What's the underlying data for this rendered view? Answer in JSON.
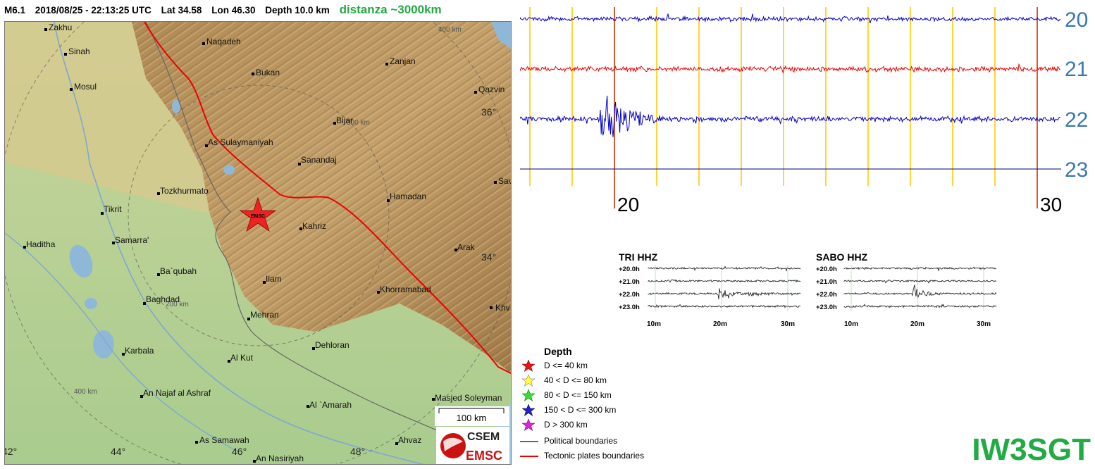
{
  "header": {
    "magnitude": "M6.1",
    "datetime": "2018/08/25 - 22:13:25 UTC",
    "lat": "Lat 34.58",
    "lon": "Lon 46.30",
    "depth": "Depth  10.0 km",
    "distance": "distanza ~3000km"
  },
  "map": {
    "epicenter_label": "EMSC",
    "scale_label": "100 km",
    "ring_labels": [
      "400 km",
      "300 km",
      "200 km",
      "400 km"
    ],
    "lon_ticks": [
      "44°",
      "46°",
      "48°"
    ],
    "lat_ticks": [
      "36°",
      "34°"
    ],
    "edge_ticks": [
      "42°"
    ],
    "cities": [
      "Zakhu",
      "Naqadeh",
      "Sinah",
      "Zanjan",
      "Bukan",
      "Mosul",
      "Qazvin",
      "Bijar",
      "As Sulaymaniyah",
      "Sanandaj",
      "Sav",
      "Tozkhurmato",
      "Hamadan",
      "Tikrit",
      "Kahriz",
      "Samarra'",
      "Haditha",
      "Arak",
      "Ba`qubah",
      "Ilam",
      "Khorramabad",
      "Baghdad",
      "Khv",
      "Mehran",
      "Dehloran",
      "Karbala",
      "Al Kut",
      "An Najaf al Ashraf",
      "Al `Amarah",
      "Masjed Soleyman",
      "As Samawah",
      "Ahvaz",
      "An Nasiriyah"
    ],
    "logo_top": "CSEM",
    "logo_bottom": "EMSC"
  },
  "helicorder": {
    "hour_labels": [
      "20",
      "21",
      "22",
      "23"
    ],
    "time_labels": [
      "20",
      "30"
    ],
    "trace_colors": [
      "#0000cc",
      "#ee0000",
      "#0000cc",
      "#000080"
    ],
    "marker_color": "#ffcc00",
    "minute_marker_color": "#cc3300"
  },
  "small_plots": [
    {
      "title": "TRI HHZ",
      "rows": [
        "+20.0h",
        "+21.0h",
        "+22.0h",
        "+23.0h"
      ],
      "ticks": [
        "10m",
        "20m",
        "30m"
      ]
    },
    {
      "title": "SABO HHZ",
      "rows": [
        "+20.0h",
        "+21.0h",
        "+22.0h",
        "+23.0h"
      ],
      "ticks": [
        "10m",
        "20m",
        "30m"
      ]
    }
  ],
  "legend": {
    "title": "Depth",
    "items": [
      {
        "label": "D <= 40 km",
        "color": "#ee1111"
      },
      {
        "label": "40 < D <= 80 km",
        "color": "#ffff33"
      },
      {
        "label": "80 < D <= 150 km",
        "color": "#33dd33"
      },
      {
        "label": "150 < D <= 300 km",
        "color": "#2222cc"
      },
      {
        "label": "D > 300 km",
        "color": "#dd22dd"
      }
    ],
    "lines": [
      {
        "label": "Political boundaries",
        "color": "#666666"
      },
      {
        "label": "Tectonic plates boundaries",
        "color": "#ee0000"
      }
    ]
  },
  "callsign": "IW3SGT"
}
